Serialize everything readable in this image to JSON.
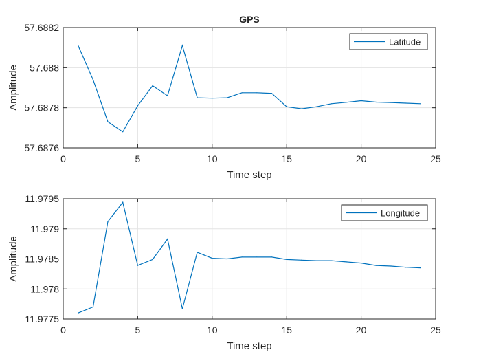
{
  "chart_data": [
    {
      "type": "line",
      "title": "GPS",
      "xlabel": "Time step",
      "ylabel": "Amplitude",
      "xlim": [
        0,
        25
      ],
      "ylim": [
        57.6876,
        57.6882
      ],
      "xticks": [
        0,
        5,
        10,
        15,
        20,
        25
      ],
      "yticks": [
        "57.6876",
        "57.6878",
        "57.688",
        "57.6882"
      ],
      "grid": true,
      "legend_position": "top-right",
      "color": "#0072BD",
      "series": [
        {
          "name": "Latitude",
          "x": [
            1,
            2,
            3,
            4,
            5,
            6,
            7,
            8,
            9,
            10,
            11,
            12,
            13,
            14,
            15,
            16,
            17,
            18,
            19,
            20,
            21,
            22,
            23,
            24
          ],
          "y": [
            57.68811,
            57.68794,
            57.68773,
            57.68768,
            57.68781,
            57.68791,
            57.68786,
            57.68811,
            57.68785,
            57.687848,
            57.68785,
            57.687875,
            57.687875,
            57.687872,
            57.687805,
            57.687795,
            57.687805,
            57.68782,
            57.687827,
            57.687835,
            57.687828,
            57.687826,
            57.687823,
            57.68782
          ]
        }
      ]
    },
    {
      "type": "line",
      "title": "",
      "xlabel": "Time step",
      "ylabel": "Amplitude",
      "xlim": [
        0,
        25
      ],
      "ylim": [
        11.9775,
        11.9795
      ],
      "xticks": [
        0,
        5,
        10,
        15,
        20,
        25
      ],
      "yticks": [
        "11.9775",
        "11.978",
        "11.9785",
        "11.979",
        "11.9795"
      ],
      "grid": true,
      "legend_position": "top-right",
      "color": "#0072BD",
      "series": [
        {
          "name": "Longitude",
          "x": [
            1,
            2,
            3,
            4,
            5,
            6,
            7,
            8,
            9,
            10,
            11,
            12,
            13,
            14,
            15,
            16,
            17,
            18,
            19,
            20,
            21,
            22,
            23,
            24
          ],
          "y": [
            11.9776,
            11.9777,
            11.97912,
            11.97944,
            11.97839,
            11.97849,
            11.97883,
            11.97767,
            11.97861,
            11.97851,
            11.9785,
            11.97853,
            11.97853,
            11.97853,
            11.97849,
            11.97848,
            11.97847,
            11.97847,
            11.97845,
            11.97843,
            11.97839,
            11.97838,
            11.97836,
            11.97835
          ]
        }
      ]
    }
  ]
}
